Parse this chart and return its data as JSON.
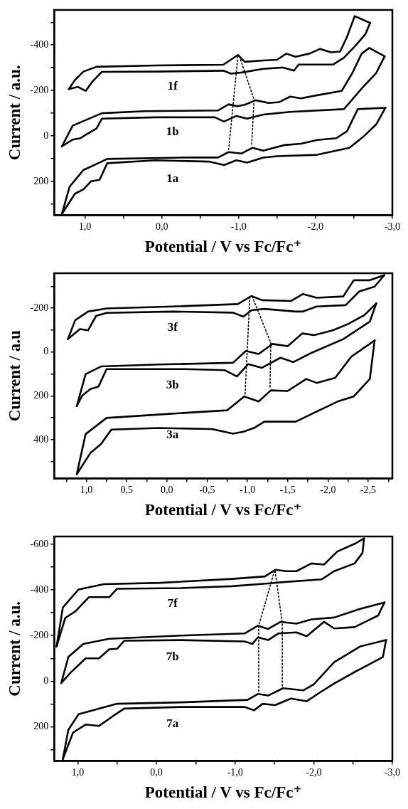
{
  "chart_data": [
    {
      "type": "line",
      "xlabel": "Potential / V vs Fc/Fc⁺",
      "ylabel": "Current / a.u.",
      "marker": "none",
      "xlim": [
        1.4,
        -3.0
      ],
      "xticks": [
        {
          "value": 1.0,
          "label": "1,0"
        },
        {
          "value": 0.5,
          "label": null
        },
        {
          "value": 0.0,
          "label": "0,0"
        },
        {
          "value": -0.5,
          "label": null
        },
        {
          "value": -1.0,
          "label": "-1,0"
        },
        {
          "value": -1.5,
          "label": null
        },
        {
          "value": -2.0,
          "label": "-2,0"
        },
        {
          "value": -2.5,
          "label": null
        },
        {
          "value": -3.0,
          "label": "-3,0"
        }
      ],
      "ylim": [
        349,
        -554
      ],
      "yticks": [
        {
          "value": -500,
          "label": null
        },
        -400,
        {
          "value": -300,
          "label": null
        },
        -200,
        {
          "value": -100,
          "label": null
        },
        0,
        {
          "value": 100,
          "label": null
        },
        200,
        {
          "value": 300,
          "label": null
        }
      ],
      "series": [
        {
          "name": "1f",
          "color": "#000000",
          "x": [
            1.21,
            1.13,
            1.02,
            0.85,
            0.08,
            -0.8,
            -0.99,
            -1.08,
            -1.32,
            -1.5,
            -1.62,
            -1.74,
            -1.92,
            -2.06,
            -2.2,
            -2.32,
            -2.41,
            -2.51,
            -2.71
          ],
          "values": [
            -206,
            -246,
            -283,
            -304,
            -310,
            -313,
            -356,
            -326,
            -332,
            -335,
            -362,
            -348,
            -362,
            -383,
            -368,
            -371,
            -436,
            -527,
            -497
          ]
        },
        {
          "color": "#000000",
          "x": [
            -2.71,
            -2.65,
            -2.51,
            -2.37,
            -2.23,
            -1.78,
            -1.72,
            -1.57,
            -1.32,
            -1.04,
            -0.9,
            -0.8,
            0.08,
            0.78,
            0.9,
            0.99,
            1.09,
            1.21
          ],
          "values": [
            -497,
            -448,
            -393,
            -344,
            -314,
            -314,
            -287,
            -301,
            -295,
            -279,
            -274,
            -287,
            -283,
            -282,
            -240,
            -198,
            -216,
            -206
          ]
        },
        {
          "name": "1b",
          "color": "#000000",
          "x": [
            1.3,
            1.16,
            0.78,
            0.22,
            -0.73,
            -0.87,
            -0.98,
            -1.08,
            -1.22,
            -1.39,
            -1.53,
            -1.67,
            -1.81,
            -2.02,
            -2.34,
            -2.48,
            -2.6,
            -2.7,
            -2.9
          ],
          "values": [
            46,
            -45,
            -100,
            -109,
            -112,
            -139,
            -131,
            -137,
            -157,
            -145,
            -149,
            -173,
            -165,
            -179,
            -198,
            -277,
            -362,
            -387,
            -350
          ]
        },
        {
          "color": "#000000",
          "x": [
            -2.9,
            -2.79,
            -2.62,
            -2.37,
            -1.67,
            -1.32,
            -1.11,
            -0.97,
            -0.81,
            -0.69,
            0.08,
            0.78,
            0.85,
            0.97,
            1.06,
            1.16,
            1.3
          ],
          "values": [
            -350,
            -277,
            -216,
            -118,
            -106,
            -94,
            -76,
            -88,
            -63,
            -82,
            -82,
            -76,
            -33,
            -9,
            10,
            16,
            46
          ]
        },
        {
          "name": "1a",
          "color": "#000000",
          "x": [
            1.3,
            1.2,
            1.02,
            0.71,
            -0.27,
            -0.73,
            -0.87,
            -1.04,
            -1.18,
            -1.32,
            -1.6,
            -1.81,
            -2.02,
            -2.27,
            -2.41,
            -2.55,
            -2.91
          ],
          "values": [
            343,
            223,
            150,
            101,
            95,
            95,
            71,
            77,
            52,
            65,
            40,
            34,
            18,
            10,
            -21,
            -118,
            -124
          ]
        },
        {
          "color": "#000000",
          "x": [
            -2.91,
            -2.79,
            -2.62,
            -2.44,
            -2.02,
            -1.5,
            -1.32,
            -1.11,
            -0.97,
            -0.81,
            -0.62,
            0.08,
            0.71,
            0.81,
            0.92,
            1.02,
            1.13,
            1.3
          ],
          "values": [
            -124,
            -51,
            4,
            52,
            83,
            89,
            95,
            117,
            107,
            128,
            113,
            107,
            120,
            193,
            199,
            235,
            254,
            343
          ]
        },
        {
          "color": "#000000",
          "line_style": "dotted",
          "x": [
            -0.99,
            -0.87
          ],
          "values": [
            -350,
            59
          ]
        },
        {
          "color": "#000000",
          "line_style": "dotted",
          "x": [
            -1.01,
            -1.2,
            -1.17
          ],
          "values": [
            -350,
            -160,
            40
          ]
        }
      ]
    },
    {
      "type": "line",
      "xlabel": "Potential / V vs Fc/Fc⁺",
      "ylabel": "Current / a.u",
      "marker": "none",
      "xlim": [
        1.4,
        -2.8
      ],
      "xticks": [
        {
          "value": 1.25,
          "label": null
        },
        {
          "value": 1.0,
          "label": "1,0"
        },
        {
          "value": 0.75,
          "label": null
        },
        {
          "value": 0.5,
          "label": "0,5"
        },
        {
          "value": 0.25,
          "label": null
        },
        {
          "value": 0.0,
          "label": "0,0"
        },
        {
          "value": -0.25,
          "label": null
        },
        {
          "value": -0.5,
          "label": "-0,5"
        },
        {
          "value": -0.75,
          "label": null
        },
        {
          "value": -1.0,
          "label": "-1,0"
        },
        {
          "value": -1.25,
          "label": null
        },
        {
          "value": -1.5,
          "label": "-1,5"
        },
        {
          "value": -1.75,
          "label": null
        },
        {
          "value": -2.0,
          "label": "-2,0"
        },
        {
          "value": -2.25,
          "label": null
        },
        {
          "value": -2.5,
          "label": "-2,5"
        },
        {
          "value": -2.75,
          "label": null
        }
      ],
      "ylim": [
        578,
        -360
      ],
      "yticks": [
        {
          "value": -300,
          "label": null
        },
        -200,
        {
          "value": -100,
          "label": null
        },
        0,
        {
          "value": 100,
          "label": null
        },
        200,
        {
          "value": 300,
          "label": null
        },
        400,
        {
          "value": 500,
          "label": null
        }
      ],
      "series": [
        {
          "name": "3f",
          "color": "#000000",
          "x": [
            1.23,
            1.14,
            0.98,
            0.75,
            -0.07,
            -0.88,
            -1.05,
            -1.18,
            -1.54,
            -1.69,
            -1.86,
            -2.19,
            -2.32,
            -2.52,
            -2.7
          ],
          "values": [
            -59,
            -145,
            -185,
            -199,
            -208,
            -219,
            -256,
            -237,
            -233,
            -265,
            -248,
            -254,
            -328,
            -328,
            -351
          ]
        },
        {
          "color": "#000000",
          "x": [
            -2.7,
            -2.58,
            -2.39,
            -2.22,
            -1.86,
            -1.69,
            -1.6,
            -1.21,
            -1.05,
            -0.95,
            -0.82,
            -0.07,
            0.75,
            0.88,
            0.98,
            1.08,
            1.23
          ],
          "values": [
            -351,
            -299,
            -277,
            -214,
            -208,
            -185,
            -185,
            -197,
            -191,
            -162,
            -180,
            -185,
            -179,
            -165,
            -99,
            -105,
            -59
          ]
        },
        {
          "name": "3b",
          "color": "#000000",
          "x": [
            1.12,
            1.01,
            0.82,
            0.1,
            -0.82,
            -0.98,
            -1.14,
            -1.31,
            -1.5,
            -1.68,
            -1.83,
            -2.06,
            -2.25,
            -2.45,
            -2.6
          ],
          "values": [
            247,
            101,
            66,
            57,
            49,
            -5,
            9,
            -37,
            -27,
            -85,
            -77,
            -99,
            -128,
            -168,
            -222
          ]
        },
        {
          "color": "#000000",
          "x": [
            -2.6,
            -2.52,
            -2.19,
            -1.8,
            -1.57,
            -1.41,
            -1.18,
            -1.01,
            -0.87,
            -0.72,
            -0.23,
            0.75,
            0.85,
            0.95,
            1.05,
            1.12
          ],
          "values": [
            -222,
            -139,
            -59,
            3,
            46,
            26,
            72,
            55,
            112,
            83,
            78,
            78,
            158,
            169,
            198,
            247
          ]
        },
        {
          "name": "3a",
          "color": "#000000",
          "x": [
            1.12,
            1.01,
            0.75,
            0.0,
            -0.75,
            -0.96,
            -1.14,
            -1.29,
            -1.5,
            -1.73,
            -1.86,
            -2.09,
            -2.29,
            -2.58
          ],
          "values": [
            558,
            375,
            301,
            283,
            266,
            203,
            226,
            175,
            178,
            123,
            141,
            118,
            21,
            -53
          ]
        },
        {
          "color": "#000000",
          "x": [
            -2.58,
            -2.52,
            -2.32,
            -2.12,
            -1.86,
            -1.6,
            -1.21,
            -1.08,
            -0.95,
            -0.82,
            -0.56,
            0.1,
            0.69,
            0.82,
            0.95,
            1.12
          ],
          "values": [
            -53,
            123,
            203,
            226,
            272,
            318,
            318,
            347,
            364,
            373,
            352,
            347,
            354,
            421,
            461,
            558
          ]
        },
        {
          "color": "#000000",
          "line_style": "dotted",
          "x": [
            -1.03,
            -0.97
          ],
          "values": [
            -253,
            198
          ]
        },
        {
          "color": "#000000",
          "line_style": "dotted",
          "x": [
            -1.06,
            -1.29,
            -1.28
          ],
          "values": [
            -253,
            -42,
            169
          ]
        }
      ]
    },
    {
      "type": "line",
      "xlabel": "Potential / V vs Fc/Fc⁺",
      "ylabel": "Current / a.u.",
      "marker": "none",
      "xlim": [
        1.3,
        -3.0
      ],
      "xticks": [
        {
          "value": 1.0,
          "label": "1,0"
        },
        {
          "value": 0.5,
          "label": null
        },
        {
          "value": 0.0,
          "label": "0,0"
        },
        {
          "value": -0.5,
          "label": null
        },
        {
          "value": -1.0,
          "label": "-1,0"
        },
        {
          "value": -1.5,
          "label": null
        },
        {
          "value": -2.0,
          "label": "-2,0"
        },
        {
          "value": -2.5,
          "label": null
        },
        {
          "value": -3.0,
          "label": "-3,0"
        }
      ],
      "ylim": [
        350,
        -634
      ],
      "yticks": [
        -600,
        {
          "value": -500,
          "label": null
        },
        -400,
        {
          "value": -300,
          "label": null
        },
        -200,
        {
          "value": -100,
          "label": null
        },
        0,
        {
          "value": 100,
          "label": null
        },
        200,
        {
          "value": 300,
          "label": null
        }
      ],
      "series": [
        {
          "name": "7f",
          "color": "#000000",
          "x": [
            1.27,
            1.19,
            0.99,
            0.67,
            -0.05,
            -0.96,
            -1.38,
            -1.51,
            -1.65,
            -1.78,
            -1.97,
            -2.13,
            -2.3,
            -2.52,
            -2.64
          ],
          "values": [
            -152,
            -323,
            -402,
            -425,
            -431,
            -448,
            -459,
            -488,
            -482,
            -482,
            -516,
            -511,
            -568,
            -602,
            -625
          ]
        },
        {
          "color": "#000000",
          "x": [
            -2.64,
            -2.62,
            -2.52,
            -2.26,
            -2.1,
            -1.61,
            -1.42,
            -0.96,
            -0.31,
            0.5,
            0.6,
            0.73,
            0.86,
            1.03,
            1.16,
            1.27
          ],
          "values": [
            -625,
            -562,
            -516,
            -482,
            -446,
            -434,
            -428,
            -416,
            -408,
            -405,
            -368,
            -368,
            -368,
            -306,
            -277,
            -152
          ]
        },
        {
          "name": "7b",
          "color": "#000000",
          "x": [
            1.21,
            1.12,
            0.93,
            0.6,
            -0.31,
            -1.12,
            -1.29,
            -1.42,
            -1.58,
            -1.78,
            -1.97,
            -2.26,
            -2.59,
            -2.9
          ],
          "values": [
            8,
            -106,
            -163,
            -186,
            -200,
            -209,
            -243,
            -229,
            -260,
            -252,
            -271,
            -279,
            -317,
            -345
          ]
        },
        {
          "color": "#000000",
          "x": [
            -2.9,
            -2.82,
            -2.52,
            -2.26,
            -2.13,
            -1.91,
            -1.78,
            -1.55,
            -1.42,
            -1.29,
            -1.22,
            -1.12,
            -0.31,
            0.41,
            0.5,
            0.6,
            0.73,
            0.9,
            1.09,
            1.21
          ],
          "values": [
            -345,
            -288,
            -237,
            -231,
            -260,
            -197,
            -214,
            -209,
            -180,
            -192,
            -163,
            -174,
            -180,
            -177,
            -142,
            -140,
            -100,
            -100,
            -38,
            8
          ]
        },
        {
          "name": "7a",
          "color": "#000000",
          "x": [
            1.19,
            1.12,
            0.99,
            0.5,
            -0.31,
            -1.16,
            -1.29,
            -1.42,
            -1.61,
            -1.87,
            -2.0,
            -2.26,
            -2.59,
            -2.92
          ],
          "values": [
            341,
            213,
            145,
            99,
            93,
            82,
            56,
            63,
            31,
            40,
            14,
            -83,
            -152,
            -180
          ]
        },
        {
          "color": "#000000",
          "x": [
            -2.92,
            -2.88,
            -2.52,
            -2.26,
            -2.1,
            -1.91,
            -1.71,
            -1.51,
            -1.35,
            -1.24,
            -1.12,
            -0.31,
            0.41,
            0.54,
            0.73,
            0.9,
            1.06,
            1.19
          ],
          "values": [
            -180,
            -106,
            -40,
            10,
            45,
            88,
            76,
            105,
            99,
            128,
            113,
            113,
            120,
            150,
            196,
            190,
            225,
            341
          ]
        },
        {
          "color": "#000000",
          "line_style": "dotted",
          "x": [
            -1.5,
            -1.3,
            -1.3
          ],
          "values": [
            -482,
            -243,
            48
          ]
        },
        {
          "color": "#000000",
          "line_style": "dotted",
          "x": [
            -1.51,
            -1.6,
            -1.6
          ],
          "values": [
            -482,
            -254,
            28
          ]
        }
      ]
    }
  ]
}
